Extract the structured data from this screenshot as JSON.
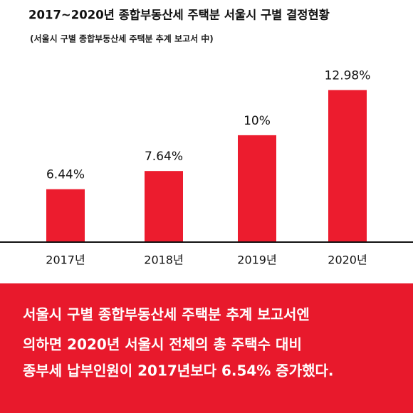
{
  "chart_data": {
    "type": "bar",
    "title": "2017~2020년 종합부동산세 주택분 서울시 구별 결정현황",
    "subtitle": "(서울시 구별 종합부동산세 주택분 추계 보고서 中)",
    "categories": [
      "2017년",
      "2018년",
      "2019년",
      "2020년"
    ],
    "values": [
      6.44,
      7.64,
      10,
      12.98
    ],
    "value_labels": [
      "6.44%",
      "7.64%",
      "10%",
      "12.98%"
    ],
    "color": "#ec1c2e",
    "ylim": [
      3,
      13
    ]
  },
  "caption": {
    "lines": [
      "서울시 구별 종합부동산세 주택분 추계 보고서엔",
      "의하면 2020년 서울시 전체의 총 주택수 대비",
      "종부세 납부인원이 2017년보다 6.54% 증가했다."
    ]
  }
}
